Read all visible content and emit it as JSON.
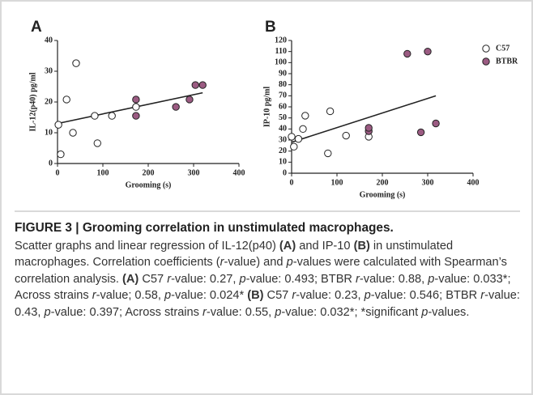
{
  "chart_data": [
    {
      "type": "scatter",
      "panel": "A",
      "ylabel": "IL-12(p40) pg/ml",
      "xlabel": "Grooming (s)",
      "xlim": [
        0,
        400
      ],
      "xticks": [
        0,
        100,
        200,
        300,
        400
      ],
      "ylim": [
        0,
        40
      ],
      "yticks": [
        0,
        10,
        20,
        30,
        40
      ],
      "legend": false,
      "series": [
        {
          "name": "C57",
          "color": "#ffffff",
          "x": [
            2,
            7,
            20,
            34,
            41,
            82,
            88,
            120,
            173
          ],
          "values": [
            12.6,
            3,
            20.8,
            10,
            32.6,
            15.5,
            6.6,
            15.5,
            18.4
          ]
        },
        {
          "name": "BTBR",
          "color": "#9b5b82",
          "x": [
            173,
            173,
            261,
            291,
            304,
            320
          ],
          "values": [
            15.5,
            20.8,
            18.4,
            20.8,
            25.5,
            25.5
          ]
        }
      ],
      "trendline": {
        "x": [
          0,
          320
        ],
        "y": [
          13,
          23
        ]
      }
    },
    {
      "type": "scatter",
      "panel": "B",
      "ylabel": "IP-10 pg/ml",
      "xlabel": "Grooming (s)",
      "xlim": [
        0,
        400
      ],
      "xticks": [
        0,
        100,
        200,
        300,
        400
      ],
      "ylim": [
        0,
        120
      ],
      "yticks": [
        0,
        10,
        20,
        30,
        40,
        50,
        60,
        70,
        80,
        90,
        100,
        110,
        120
      ],
      "legend": true,
      "series": [
        {
          "name": "C57",
          "color": "#ffffff",
          "x": [
            0,
            5,
            15,
            25,
            30,
            85,
            80,
            120,
            170
          ],
          "values": [
            33,
            24,
            31,
            40,
            52,
            56,
            18,
            34,
            33
          ]
        },
        {
          "name": "BTBR",
          "color": "#9b5b82",
          "x": [
            170,
            170,
            255,
            285,
            300,
            318
          ],
          "values": [
            38,
            41,
            108,
            37,
            110,
            45
          ]
        }
      ],
      "trendline": {
        "x": [
          0,
          318
        ],
        "y": [
          28,
          70
        ]
      }
    }
  ],
  "caption": {
    "title": "FIGURE 3 | Grooming correlation in unstimulated macrophages.",
    "body": [
      {
        "text": "Scatter graphs and linear regression of IL-12(p40) ",
        "style": "n"
      },
      {
        "text": "(A)",
        "style": "b"
      },
      {
        "text": " and IP-10 ",
        "style": "n"
      },
      {
        "text": "(B)",
        "style": "b"
      },
      {
        "text": " in unstimulated macrophages. Correlation coefficients (",
        "style": "n"
      },
      {
        "text": "r",
        "style": "i"
      },
      {
        "text": "-value) and ",
        "style": "n"
      },
      {
        "text": "p",
        "style": "i"
      },
      {
        "text": "-values were calculated with Spearman’s correlation analysis. ",
        "style": "n"
      },
      {
        "text": "(A)",
        "style": "b"
      },
      {
        "text": " C57 ",
        "style": "n"
      },
      {
        "text": "r",
        "style": "i"
      },
      {
        "text": "-value: 0.27, ",
        "style": "n"
      },
      {
        "text": "p",
        "style": "i"
      },
      {
        "text": "-value: 0.493; BTBR ",
        "style": "n"
      },
      {
        "text": "r",
        "style": "i"
      },
      {
        "text": "-value: 0.88, ",
        "style": "n"
      },
      {
        "text": "p",
        "style": "i"
      },
      {
        "text": "-value: 0.033*; Across strains ",
        "style": "n"
      },
      {
        "text": "r",
        "style": "i"
      },
      {
        "text": "-value; 0.58, ",
        "style": "n"
      },
      {
        "text": "p",
        "style": "i"
      },
      {
        "text": "-value: 0.024* ",
        "style": "n"
      },
      {
        "text": "(B)",
        "style": "b"
      },
      {
        "text": " C57 ",
        "style": "n"
      },
      {
        "text": "r",
        "style": "i"
      },
      {
        "text": "-value: 0.23, ",
        "style": "n"
      },
      {
        "text": "p",
        "style": "i"
      },
      {
        "text": "-value: 0.546; BTBR ",
        "style": "n"
      },
      {
        "text": "r",
        "style": "i"
      },
      {
        "text": "-value: 0.43, ",
        "style": "n"
      },
      {
        "text": "p",
        "style": "i"
      },
      {
        "text": "-value: 0.397; Across strains ",
        "style": "n"
      },
      {
        "text": "r",
        "style": "i"
      },
      {
        "text": "-value: 0.55, ",
        "style": "n"
      },
      {
        "text": "p",
        "style": "i"
      },
      {
        "text": "-value: 0.032*; *significant ",
        "style": "n"
      },
      {
        "text": "p",
        "style": "i"
      },
      {
        "text": "-values.",
        "style": "n"
      }
    ]
  }
}
